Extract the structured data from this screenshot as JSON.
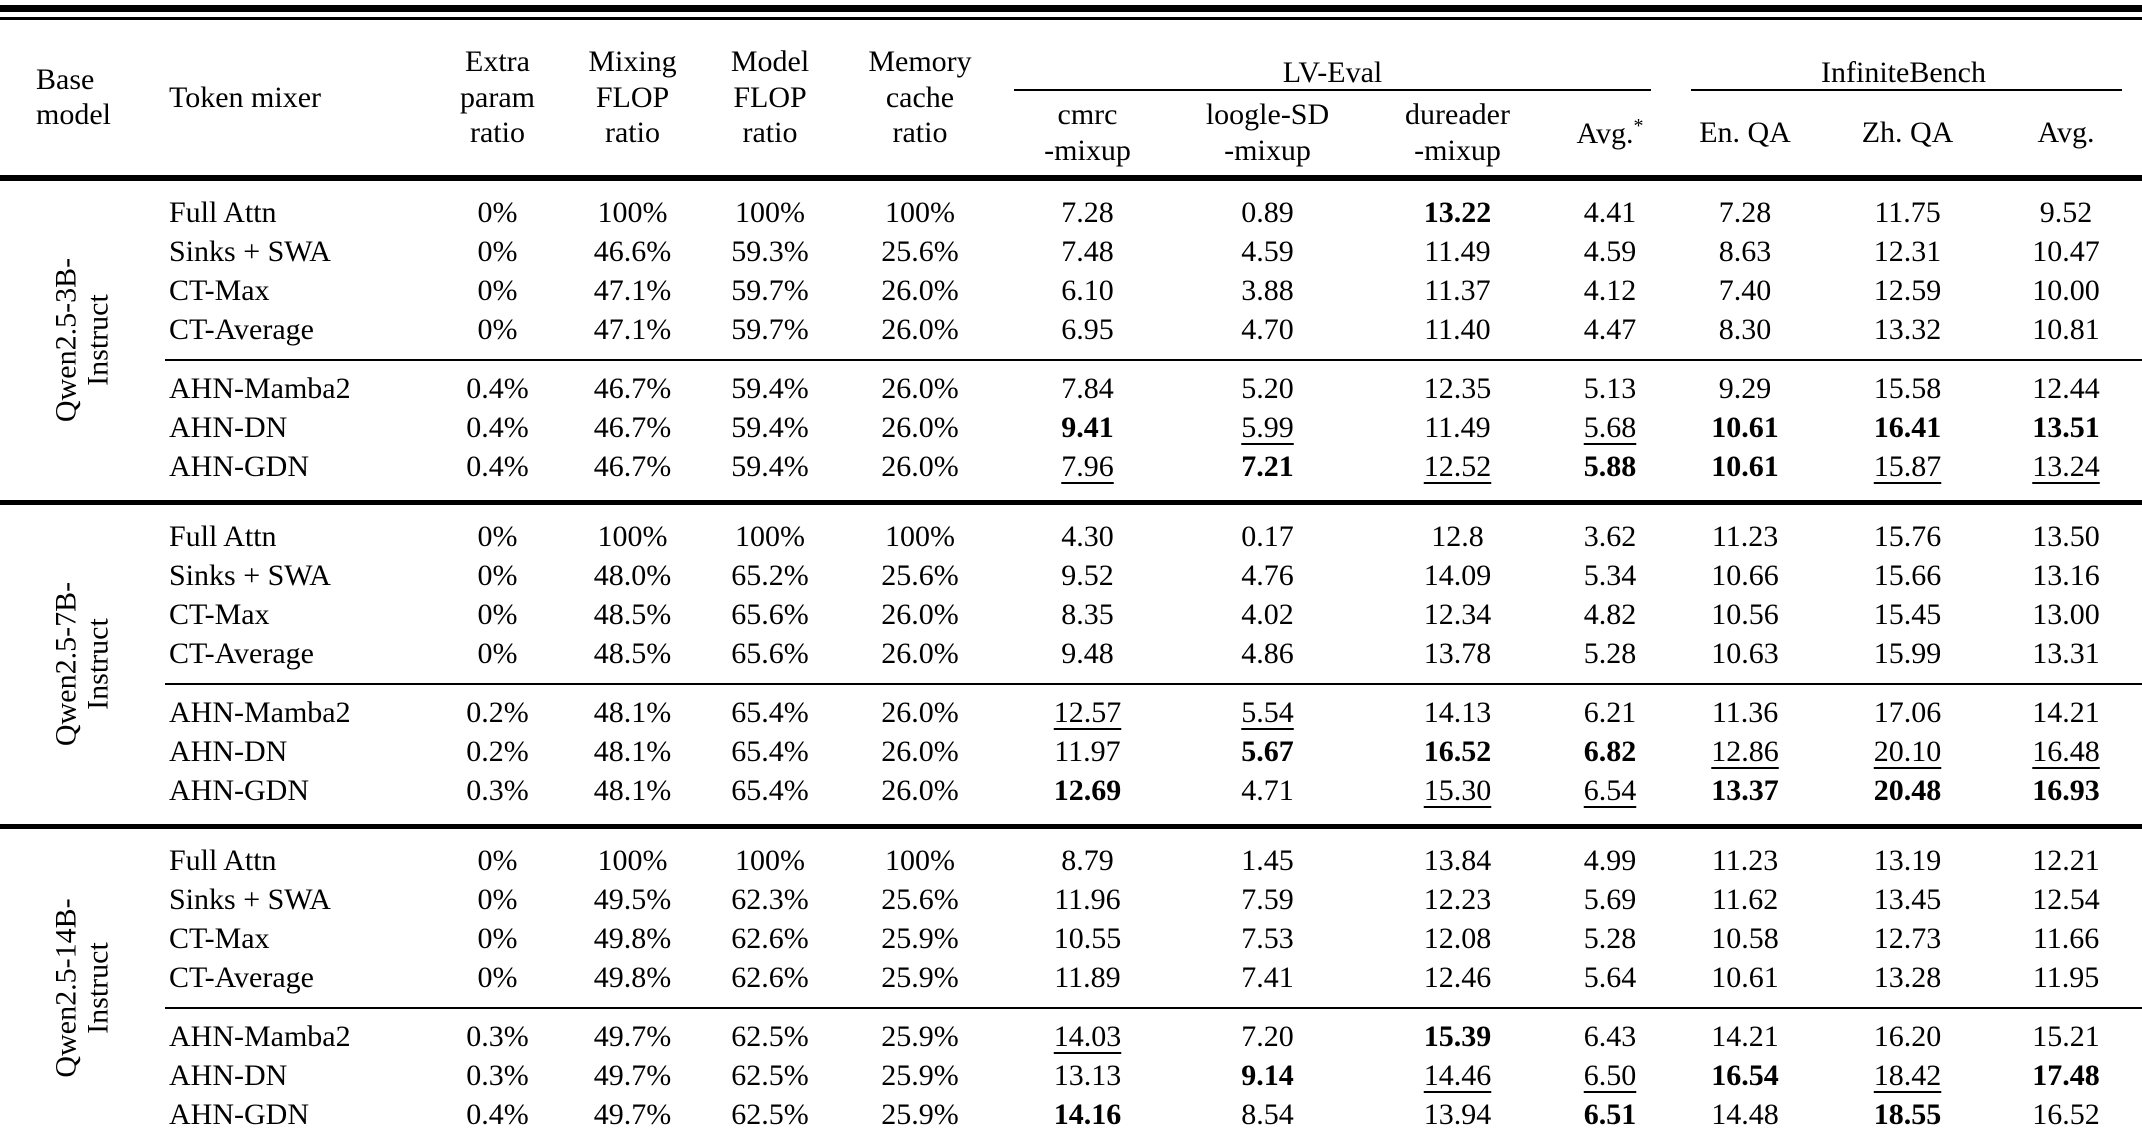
{
  "colors": {
    "background": "#ffffff",
    "text": "#000000",
    "rule": "#000000"
  },
  "table": {
    "header": {
      "base_model": "Base\nmodel",
      "token_mixer": "Token mixer",
      "extra_param": "Extra\nparam\nratio",
      "mixing_flop": "Mixing\nFLOP\nratio",
      "model_flop": "Model\nFLOP\nratio",
      "memory_cache": "Memory\ncache\nratio",
      "lv_eval": {
        "label": "LV-Eval",
        "col_cmrc": "cmrc\n-mixup",
        "col_loogle": "loogle-SD\n-mixup",
        "col_dureader": "dureader\n-mixup",
        "avg_label": "Avg.",
        "avg_sup": "*"
      },
      "infinitebench": {
        "label": "InfiniteBench",
        "col_en_qa": "En. QA",
        "col_zh_qa": "Zh. QA",
        "col_avg": "Avg."
      }
    },
    "style_legend": {
      "b": "bold-best",
      "u": "underline-second-best"
    },
    "groups": [
      {
        "base_model": "Qwen2.5-3B-\nInstruct",
        "rows": [
          {
            "mixer": "Full Attn",
            "values": [
              "0%",
              "100%",
              "100%",
              "100%",
              "7.28",
              "0.89",
              {
                "v": "13.22",
                "s": "b"
              },
              "4.41",
              "7.28",
              "11.75",
              "9.52"
            ]
          },
          {
            "mixer": "Sinks + SWA",
            "values": [
              "0%",
              "46.6%",
              "59.3%",
              "25.6%",
              "7.48",
              "4.59",
              "11.49",
              "4.59",
              "8.63",
              "12.31",
              "10.47"
            ]
          },
          {
            "mixer": "CT-Max",
            "values": [
              "0%",
              "47.1%",
              "59.7%",
              "26.0%",
              "6.10",
              "3.88",
              "11.37",
              "4.12",
              "7.40",
              "12.59",
              "10.00"
            ]
          },
          {
            "mixer": "CT-Average",
            "values": [
              "0%",
              "47.1%",
              "59.7%",
              "26.0%",
              "6.95",
              "4.70",
              "11.40",
              "4.47",
              "8.30",
              "13.32",
              "10.81"
            ]
          },
          {
            "mixer": "AHN-Mamba2",
            "values": [
              "0.4%",
              "46.7%",
              "59.4%",
              "26.0%",
              "7.84",
              "5.20",
              "12.35",
              "5.13",
              "9.29",
              "15.58",
              "12.44"
            ]
          },
          {
            "mixer": "AHN-DN",
            "values": [
              "0.4%",
              "46.7%",
              "59.4%",
              "26.0%",
              {
                "v": "9.41",
                "s": "b"
              },
              {
                "v": "5.99",
                "s": "u"
              },
              "11.49",
              {
                "v": "5.68",
                "s": "u"
              },
              {
                "v": "10.61",
                "s": "b"
              },
              {
                "v": "16.41",
                "s": "b"
              },
              {
                "v": "13.51",
                "s": "b"
              }
            ]
          },
          {
            "mixer": "AHN-GDN",
            "values": [
              "0.4%",
              "46.7%",
              "59.4%",
              "26.0%",
              {
                "v": "7.96",
                "s": "u"
              },
              {
                "v": "7.21",
                "s": "b"
              },
              {
                "v": "12.52",
                "s": "u"
              },
              {
                "v": "5.88",
                "s": "b"
              },
              {
                "v": "10.61",
                "s": "b"
              },
              {
                "v": "15.87",
                "s": "u"
              },
              {
                "v": "13.24",
                "s": "u"
              }
            ]
          }
        ]
      },
      {
        "base_model": "Qwen2.5-7B-\nInstruct",
        "rows": [
          {
            "mixer": "Full Attn",
            "values": [
              "0%",
              "100%",
              "100%",
              "100%",
              "4.30",
              "0.17",
              "12.8",
              "3.62",
              "11.23",
              "15.76",
              "13.50"
            ]
          },
          {
            "mixer": "Sinks + SWA",
            "values": [
              "0%",
              "48.0%",
              "65.2%",
              "25.6%",
              "9.52",
              "4.76",
              "14.09",
              "5.34",
              "10.66",
              "15.66",
              "13.16"
            ]
          },
          {
            "mixer": "CT-Max",
            "values": [
              "0%",
              "48.5%",
              "65.6%",
              "26.0%",
              "8.35",
              "4.02",
              "12.34",
              "4.82",
              "10.56",
              "15.45",
              "13.00"
            ]
          },
          {
            "mixer": "CT-Average",
            "values": [
              "0%",
              "48.5%",
              "65.6%",
              "26.0%",
              "9.48",
              "4.86",
              "13.78",
              "5.28",
              "10.63",
              "15.99",
              "13.31"
            ]
          },
          {
            "mixer": "AHN-Mamba2",
            "values": [
              "0.2%",
              "48.1%",
              "65.4%",
              "26.0%",
              {
                "v": "12.57",
                "s": "u"
              },
              {
                "v": "5.54",
                "s": "u"
              },
              "14.13",
              "6.21",
              "11.36",
              "17.06",
              "14.21"
            ]
          },
          {
            "mixer": "AHN-DN",
            "values": [
              "0.2%",
              "48.1%",
              "65.4%",
              "26.0%",
              "11.97",
              {
                "v": "5.67",
                "s": "b"
              },
              {
                "v": "16.52",
                "s": "b"
              },
              {
                "v": "6.82",
                "s": "b"
              },
              {
                "v": "12.86",
                "s": "u"
              },
              {
                "v": "20.10",
                "s": "u"
              },
              {
                "v": "16.48",
                "s": "u"
              }
            ]
          },
          {
            "mixer": "AHN-GDN",
            "values": [
              "0.3%",
              "48.1%",
              "65.4%",
              "26.0%",
              {
                "v": "12.69",
                "s": "b"
              },
              "4.71",
              {
                "v": "15.30",
                "s": "u"
              },
              {
                "v": "6.54",
                "s": "u"
              },
              {
                "v": "13.37",
                "s": "b"
              },
              {
                "v": "20.48",
                "s": "b"
              },
              {
                "v": "16.93",
                "s": "b"
              }
            ]
          }
        ]
      },
      {
        "base_model": "Qwen2.5-14B-\nInstruct",
        "rows": [
          {
            "mixer": "Full Attn",
            "values": [
              "0%",
              "100%",
              "100%",
              "100%",
              "8.79",
              "1.45",
              "13.84",
              "4.99",
              "11.23",
              "13.19",
              "12.21"
            ]
          },
          {
            "mixer": "Sinks + SWA",
            "values": [
              "0%",
              "49.5%",
              "62.3%",
              "25.6%",
              "11.96",
              "7.59",
              "12.23",
              "5.69",
              "11.62",
              "13.45",
              "12.54"
            ]
          },
          {
            "mixer": "CT-Max",
            "values": [
              "0%",
              "49.8%",
              "62.6%",
              "25.9%",
              "10.55",
              "7.53",
              "12.08",
              "5.28",
              "10.58",
              "12.73",
              "11.66"
            ]
          },
          {
            "mixer": "CT-Average",
            "values": [
              "0%",
              "49.8%",
              "62.6%",
              "25.9%",
              "11.89",
              "7.41",
              "12.46",
              "5.64",
              "10.61",
              "13.28",
              "11.95"
            ]
          },
          {
            "mixer": "AHN-Mamba2",
            "values": [
              "0.3%",
              "49.7%",
              "62.5%",
              "25.9%",
              {
                "v": "14.03",
                "s": "u"
              },
              "7.20",
              {
                "v": "15.39",
                "s": "b"
              },
              "6.43",
              "14.21",
              "16.20",
              "15.21"
            ]
          },
          {
            "mixer": "AHN-DN",
            "values": [
              "0.3%",
              "49.7%",
              "62.5%",
              "25.9%",
              "13.13",
              {
                "v": "9.14",
                "s": "b"
              },
              {
                "v": "14.46",
                "s": "u"
              },
              {
                "v": "6.50",
                "s": "u"
              },
              {
                "v": "16.54",
                "s": "b"
              },
              {
                "v": "18.42",
                "s": "u"
              },
              {
                "v": "17.48",
                "s": "b"
              }
            ]
          },
          {
            "mixer": "AHN-GDN",
            "values": [
              "0.4%",
              "49.7%",
              "62.5%",
              "25.9%",
              {
                "v": "14.16",
                "s": "b"
              },
              {
                "v": "8.54",
                "s": "u"
              },
              "13.94",
              {
                "v": "6.51",
                "s": "b"
              },
              {
                "v": "14.48",
                "s": "u"
              },
              {
                "v": "18.55",
                "s": "b"
              },
              {
                "v": "16.52",
                "s": "u"
              }
            ]
          }
        ]
      }
    ]
  }
}
